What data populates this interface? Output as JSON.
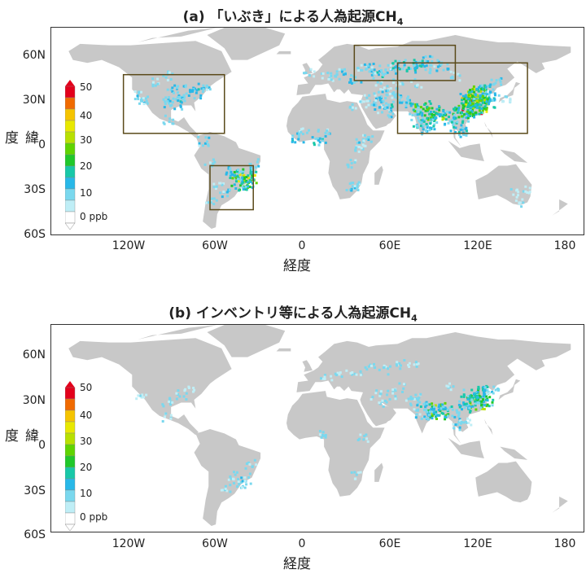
{
  "panels": [
    {
      "title_prefix": "(a) 「いぶき」による人為起源CH",
      "title_sub": "4",
      "has_boxes": true
    },
    {
      "title_prefix": "(b) インベントリ等による人為起源CH",
      "title_sub": "4",
      "has_boxes": false
    }
  ],
  "axes": {
    "x_ticks": [
      "120W",
      "60W",
      "0",
      "60E",
      "120E",
      "180"
    ],
    "y_ticks": [
      "60N",
      "30N",
      "0",
      "30S",
      "60S"
    ],
    "x_title": "経度",
    "y_title": "緯度"
  },
  "colorbar": {
    "labels": [
      "50",
      "40",
      "30",
      "20",
      "10",
      "0 ppb"
    ],
    "colors": [
      "#e3001b",
      "#f06a00",
      "#f5c400",
      "#e8e800",
      "#b8e000",
      "#5fd400",
      "#20c82a",
      "#18c8a8",
      "#28b8e8",
      "#7ad8ee",
      "#bfeef6",
      "#ffffff"
    ]
  },
  "colors": {
    "land": "#c8c8c8",
    "ocean": "#ffffff",
    "box": "#5a4a1a"
  }
}
